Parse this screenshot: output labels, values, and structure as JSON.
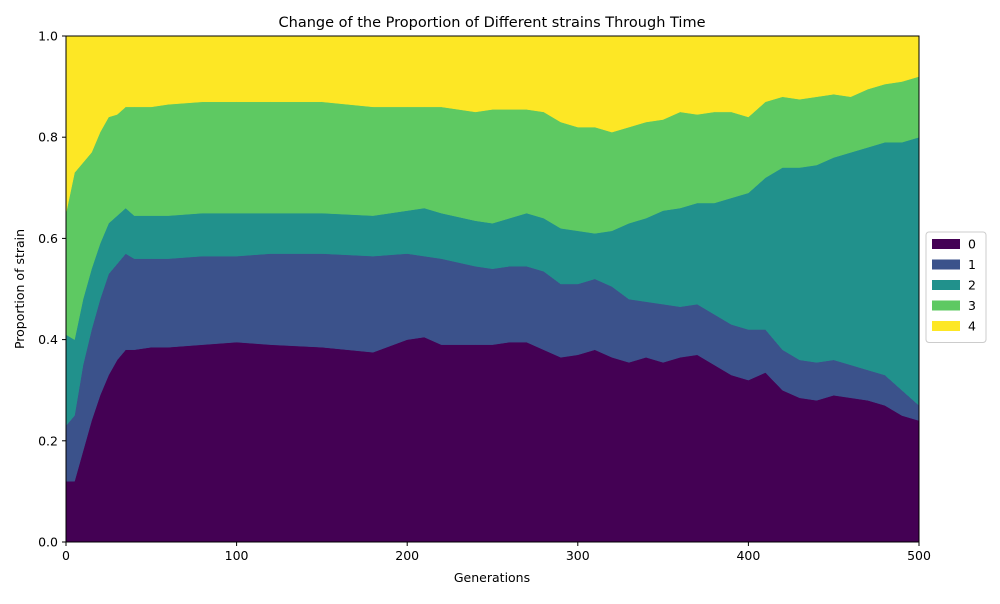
{
  "chart_data": {
    "type": "area",
    "stacked": true,
    "title": "Change of the Proportion of Different strains Through Time",
    "xlabel": "Generations",
    "ylabel": "Proportion of strain",
    "xlim": [
      0,
      500
    ],
    "ylim": [
      0,
      1
    ],
    "xticks": [
      "0",
      "100",
      "200",
      "300",
      "400",
      "500"
    ],
    "yticks": [
      "0.0",
      "0.2",
      "0.4",
      "0.6",
      "0.8",
      "1.0"
    ],
    "grid": false,
    "legend_position": "center-right-outside",
    "x": [
      0,
      5,
      10,
      15,
      20,
      25,
      30,
      35,
      40,
      50,
      60,
      80,
      100,
      120,
      150,
      180,
      200,
      210,
      220,
      240,
      250,
      260,
      270,
      280,
      290,
      300,
      310,
      320,
      330,
      340,
      350,
      360,
      370,
      380,
      390,
      400,
      410,
      420,
      430,
      440,
      450,
      460,
      470,
      480,
      490,
      500
    ],
    "series": [
      {
        "name": "0",
        "color": "#440154",
        "values": [
          0.12,
          0.12,
          0.18,
          0.24,
          0.29,
          0.33,
          0.36,
          0.38,
          0.38,
          0.385,
          0.385,
          0.39,
          0.395,
          0.39,
          0.385,
          0.375,
          0.4,
          0.405,
          0.39,
          0.39,
          0.39,
          0.395,
          0.395,
          0.38,
          0.365,
          0.37,
          0.38,
          0.365,
          0.355,
          0.365,
          0.355,
          0.365,
          0.37,
          0.35,
          0.33,
          0.32,
          0.335,
          0.3,
          0.285,
          0.28,
          0.29,
          0.285,
          0.28,
          0.27,
          0.25,
          0.24
        ]
      },
      {
        "name": "1",
        "color": "#3b528b",
        "values": [
          0.11,
          0.13,
          0.17,
          0.18,
          0.19,
          0.2,
          0.19,
          0.19,
          0.18,
          0.175,
          0.175,
          0.175,
          0.17,
          0.18,
          0.185,
          0.19,
          0.17,
          0.16,
          0.17,
          0.155,
          0.15,
          0.15,
          0.15,
          0.155,
          0.145,
          0.14,
          0.14,
          0.14,
          0.125,
          0.11,
          0.115,
          0.1,
          0.1,
          0.1,
          0.1,
          0.1,
          0.085,
          0.08,
          0.075,
          0.075,
          0.07,
          0.065,
          0.06,
          0.06,
          0.05,
          0.03
        ]
      },
      {
        "name": "2",
        "color": "#21918c",
        "values": [
          0.18,
          0.15,
          0.13,
          0.12,
          0.11,
          0.1,
          0.095,
          0.09,
          0.085,
          0.085,
          0.085,
          0.085,
          0.085,
          0.08,
          0.08,
          0.08,
          0.085,
          0.095,
          0.09,
          0.09,
          0.09,
          0.095,
          0.105,
          0.105,
          0.11,
          0.105,
          0.09,
          0.11,
          0.15,
          0.165,
          0.185,
          0.195,
          0.2,
          0.22,
          0.25,
          0.27,
          0.3,
          0.36,
          0.38,
          0.39,
          0.4,
          0.42,
          0.44,
          0.46,
          0.49,
          0.53
        ]
      },
      {
        "name": "3",
        "color": "#5ec962",
        "values": [
          0.24,
          0.33,
          0.27,
          0.23,
          0.22,
          0.21,
          0.2,
          0.2,
          0.215,
          0.215,
          0.22,
          0.22,
          0.22,
          0.22,
          0.22,
          0.215,
          0.205,
          0.2,
          0.21,
          0.215,
          0.225,
          0.215,
          0.205,
          0.21,
          0.21,
          0.205,
          0.21,
          0.195,
          0.19,
          0.19,
          0.18,
          0.19,
          0.175,
          0.18,
          0.17,
          0.15,
          0.15,
          0.14,
          0.135,
          0.135,
          0.125,
          0.11,
          0.115,
          0.115,
          0.12,
          0.12
        ]
      },
      {
        "name": "4",
        "color": "#fde725",
        "values": [
          0.35,
          0.27,
          0.25,
          0.23,
          0.19,
          0.16,
          0.155,
          0.14,
          0.14,
          0.14,
          0.135,
          0.13,
          0.13,
          0.13,
          0.13,
          0.14,
          0.14,
          0.14,
          0.14,
          0.15,
          0.145,
          0.145,
          0.145,
          0.15,
          0.17,
          0.18,
          0.18,
          0.19,
          0.18,
          0.17,
          0.165,
          0.15,
          0.155,
          0.15,
          0.15,
          0.16,
          0.13,
          0.12,
          0.125,
          0.12,
          0.115,
          0.12,
          0.105,
          0.095,
          0.09,
          0.08
        ]
      }
    ]
  }
}
